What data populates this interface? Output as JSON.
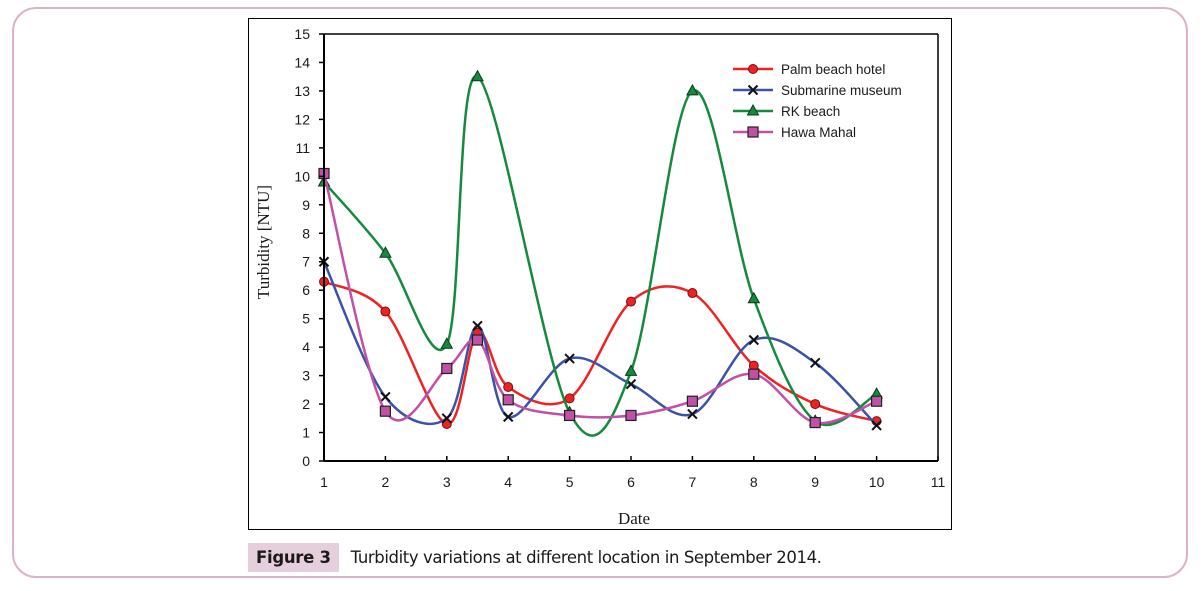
{
  "figure": {
    "label": "Figure 3",
    "caption": "Turbidity variations at different location in September 2014."
  },
  "chart_data": {
    "type": "line",
    "title": "",
    "xlabel": "Date",
    "ylabel": "Turbidity [NTU]",
    "xlim": [
      1,
      11
    ],
    "ylim": [
      0,
      15
    ],
    "x_ticks": [
      "1",
      "2",
      "3",
      "4",
      "5",
      "6",
      "7",
      "8",
      "9",
      "10",
      "11"
    ],
    "y_ticks": [
      "0",
      "1",
      "2",
      "3",
      "4",
      "5",
      "6",
      "7",
      "8",
      "9",
      "10",
      "11",
      "12",
      "13",
      "14",
      "15"
    ],
    "grid": false,
    "legend_position": "top-right",
    "smooth": true,
    "series": [
      {
        "name": "Palm beach hotel",
        "color": "#ee2222",
        "marker": "circle",
        "x": [
          1,
          2,
          3,
          3.5,
          4,
          5,
          6,
          7,
          8,
          9,
          10
        ],
        "y": [
          6.3,
          5.25,
          1.3,
          4.5,
          2.6,
          2.2,
          5.6,
          5.9,
          3.35,
          2.0,
          1.4
        ]
      },
      {
        "name": "Submarine museum",
        "color": "#3a52a8",
        "marker": "x",
        "x": [
          1,
          2,
          3,
          3.5,
          4,
          5,
          6,
          7,
          8,
          9,
          10
        ],
        "y": [
          7.0,
          2.25,
          1.5,
          4.75,
          1.55,
          3.6,
          2.7,
          1.65,
          4.25,
          3.45,
          1.25
        ]
      },
      {
        "name": "RK beach",
        "color": "#158a3e",
        "marker": "triangle",
        "x": [
          1,
          2,
          3,
          3.5,
          5,
          6,
          7,
          8,
          9,
          10
        ],
        "y": [
          9.8,
          7.3,
          4.1,
          13.5,
          1.7,
          3.15,
          13.0,
          5.7,
          1.4,
          2.35
        ]
      },
      {
        "name": "Hawa Mahal",
        "color": "#c050a8",
        "marker": "square",
        "x": [
          1,
          2,
          3,
          3.5,
          4,
          5,
          6,
          7,
          8,
          9,
          10
        ],
        "y": [
          10.1,
          1.75,
          3.25,
          4.25,
          2.15,
          1.6,
          1.6,
          2.1,
          3.05,
          1.35,
          2.1
        ]
      }
    ]
  }
}
